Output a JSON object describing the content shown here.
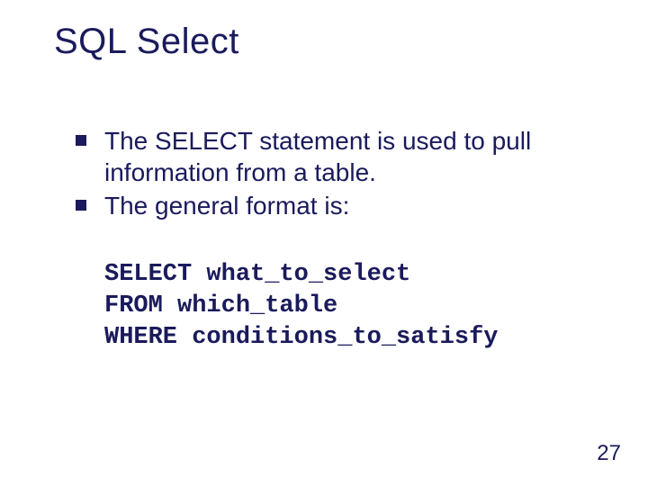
{
  "slide": {
    "title": "SQL Select",
    "bullets": [
      "The SELECT statement is used to pull information from a table.",
      "The general format is:"
    ],
    "code": [
      "SELECT what_to_select",
      "FROM which_table",
      "WHERE conditions_to_satisfy"
    ],
    "page_number": "27",
    "colors": {
      "text": "#1a1a5c",
      "background": "#ffffff"
    },
    "fonts": {
      "title_size_pt": 40,
      "body_size_pt": 28,
      "code_size_pt": 27,
      "code_family": "Courier New"
    }
  }
}
